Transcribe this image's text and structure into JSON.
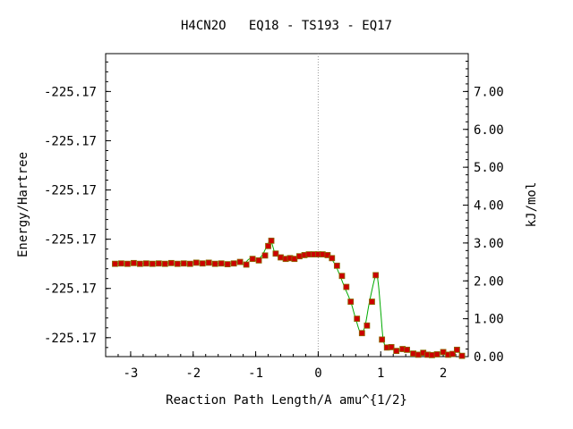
{
  "chart_data": {
    "type": "line",
    "title": "H4CN2O   EQ18 - TS193 - EQ17",
    "xlabel": "Reaction Path Length/A amu^{1/2}",
    "ylabel_left": "Energy/Hartree",
    "ylabel_right": "kJ/mol",
    "xlim": [
      -3.4,
      2.4
    ],
    "ylim_right": [
      0,
      8
    ],
    "x_ticks": [
      -3,
      -2,
      -1,
      0,
      1,
      2
    ],
    "right_ticks": [
      0,
      1,
      2,
      3,
      4,
      5,
      6,
      7
    ],
    "right_tick_labels": [
      "0.00",
      "1.00",
      "2.00",
      "3.00",
      "4.00",
      "5.00",
      "6.00",
      "7.00"
    ],
    "left_tick_values": [
      0.5,
      1.8,
      3.1,
      4.4,
      5.7,
      7.0
    ],
    "left_tick_labels": [
      "-225.17",
      "-225.17",
      "-225.17",
      "-225.17",
      "-225.17",
      "-225.17"
    ],
    "ts_marker_x": 0,
    "grid": false,
    "colors": {
      "curve": "#00aa00",
      "marker_fill": "#cc0000",
      "marker_edge": "#8a6a00",
      "ts_line": "#999999"
    },
    "points": [
      [
        -3.3,
        2.45
      ],
      [
        -3.2,
        2.46
      ],
      [
        -3.1,
        2.45
      ],
      [
        -3.0,
        2.47
      ],
      [
        -2.9,
        2.45
      ],
      [
        -2.8,
        2.46
      ],
      [
        -2.7,
        2.45
      ],
      [
        -2.6,
        2.46
      ],
      [
        -2.5,
        2.45
      ],
      [
        -2.4,
        2.47
      ],
      [
        -2.3,
        2.45
      ],
      [
        -2.2,
        2.46
      ],
      [
        -2.1,
        2.45
      ],
      [
        -2.0,
        2.48
      ],
      [
        -1.9,
        2.46
      ],
      [
        -1.8,
        2.48
      ],
      [
        -1.7,
        2.45
      ],
      [
        -1.6,
        2.46
      ],
      [
        -1.5,
        2.44
      ],
      [
        -1.4,
        2.46
      ],
      [
        -1.3,
        2.5
      ],
      [
        -1.2,
        2.43
      ],
      [
        -1.1,
        2.58
      ],
      [
        -1.0,
        2.54
      ],
      [
        -0.9,
        2.67
      ],
      [
        -0.82,
        2.92
      ],
      [
        -0.76,
        3.06
      ],
      [
        -0.69,
        2.72
      ],
      [
        -0.62,
        2.62
      ],
      [
        -0.55,
        2.58
      ],
      [
        -0.48,
        2.6
      ],
      [
        -0.4,
        2.58
      ],
      [
        -0.33,
        2.65
      ],
      [
        -0.25,
        2.68
      ],
      [
        -0.18,
        2.7
      ],
      [
        -0.1,
        2.7
      ],
      [
        -0.02,
        2.7
      ],
      [
        0.05,
        2.7
      ],
      [
        0.12,
        2.7
      ],
      [
        0.2,
        2.6
      ],
      [
        0.28,
        2.4
      ],
      [
        0.35,
        2.13
      ],
      [
        0.42,
        1.84
      ],
      [
        0.52,
        1.45
      ],
      [
        0.6,
        1.0
      ],
      [
        0.68,
        0.62
      ],
      [
        0.75,
        0.82
      ],
      [
        0.82,
        1.45
      ],
      [
        0.92,
        2.15
      ],
      [
        0.96,
        1.95
      ],
      [
        1.0,
        1.2
      ],
      [
        1.04,
        0.45
      ],
      [
        1.1,
        0.24
      ],
      [
        1.16,
        0.25
      ],
      [
        1.25,
        0.15
      ],
      [
        1.35,
        0.2
      ],
      [
        1.42,
        0.18
      ],
      [
        1.52,
        0.08
      ],
      [
        1.6,
        0.05
      ],
      [
        1.68,
        0.1
      ],
      [
        1.75,
        0.05
      ],
      [
        1.82,
        0.04
      ],
      [
        1.9,
        0.06
      ],
      [
        2.0,
        0.12
      ],
      [
        2.08,
        0.05
      ],
      [
        2.15,
        0.07
      ],
      [
        2.22,
        0.18
      ],
      [
        2.3,
        0.02
      ]
    ],
    "markers": [
      [
        -3.25,
        2.45
      ],
      [
        -3.15,
        2.46
      ],
      [
        -3.05,
        2.45
      ],
      [
        -2.95,
        2.47
      ],
      [
        -2.85,
        2.45
      ],
      [
        -2.75,
        2.46
      ],
      [
        -2.65,
        2.45
      ],
      [
        -2.55,
        2.46
      ],
      [
        -2.45,
        2.45
      ],
      [
        -2.35,
        2.47
      ],
      [
        -2.25,
        2.45
      ],
      [
        -2.15,
        2.46
      ],
      [
        -2.05,
        2.45
      ],
      [
        -1.95,
        2.48
      ],
      [
        -1.85,
        2.46
      ],
      [
        -1.75,
        2.48
      ],
      [
        -1.65,
        2.45
      ],
      [
        -1.55,
        2.46
      ],
      [
        -1.45,
        2.44
      ],
      [
        -1.35,
        2.46
      ],
      [
        -1.25,
        2.5
      ],
      [
        -1.15,
        2.43
      ],
      [
        -1.05,
        2.58
      ],
      [
        -0.95,
        2.54
      ],
      [
        -0.85,
        2.67
      ],
      [
        -0.8,
        2.92
      ],
      [
        -0.75,
        3.06
      ],
      [
        -0.68,
        2.72
      ],
      [
        -0.6,
        2.62
      ],
      [
        -0.52,
        2.58
      ],
      [
        -0.45,
        2.6
      ],
      [
        -0.38,
        2.58
      ],
      [
        -0.3,
        2.65
      ],
      [
        -0.22,
        2.68
      ],
      [
        -0.15,
        2.7
      ],
      [
        -0.07,
        2.7
      ],
      [
        0.0,
        2.7
      ],
      [
        0.07,
        2.7
      ],
      [
        0.15,
        2.68
      ],
      [
        0.22,
        2.6
      ],
      [
        0.3,
        2.4
      ],
      [
        0.38,
        2.13
      ],
      [
        0.45,
        1.84
      ],
      [
        0.52,
        1.45
      ],
      [
        0.62,
        1.0
      ],
      [
        0.7,
        0.62
      ],
      [
        0.78,
        0.82
      ],
      [
        0.86,
        1.45
      ],
      [
        0.92,
        2.15
      ],
      [
        1.02,
        0.45
      ],
      [
        1.1,
        0.24
      ],
      [
        1.17,
        0.25
      ],
      [
        1.25,
        0.15
      ],
      [
        1.35,
        0.2
      ],
      [
        1.42,
        0.18
      ],
      [
        1.52,
        0.08
      ],
      [
        1.6,
        0.05
      ],
      [
        1.68,
        0.1
      ],
      [
        1.75,
        0.05
      ],
      [
        1.82,
        0.04
      ],
      [
        1.9,
        0.06
      ],
      [
        2.0,
        0.12
      ],
      [
        2.08,
        0.05
      ],
      [
        2.15,
        0.07
      ],
      [
        2.22,
        0.18
      ],
      [
        2.3,
        0.02
      ]
    ]
  }
}
